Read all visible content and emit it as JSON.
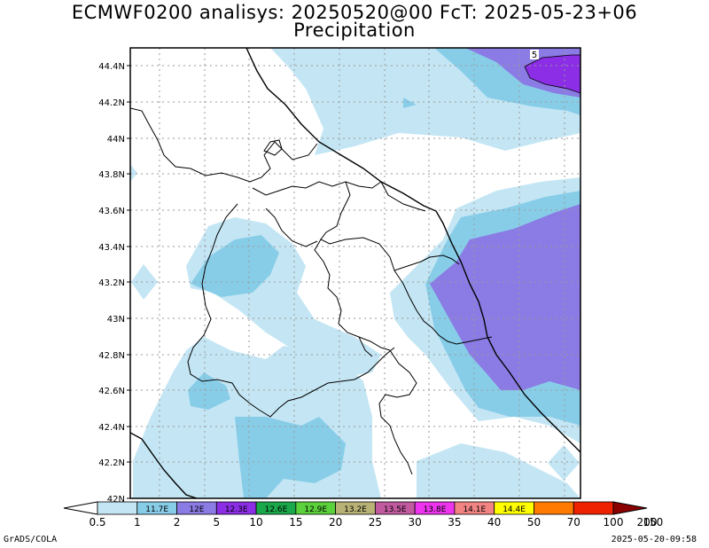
{
  "title_line1": "ECMWF0200 analisys: 20250520@00 FcT: 2025-05-23+06",
  "title_line2": "Precipitation",
  "lat_labels": [
    "44.4N",
    "44.2N",
    "44N",
    "43.8N",
    "43.6N",
    "43.4N",
    "43.2N",
    "43N",
    "42.8N",
    "42.6N",
    "42.4N",
    "42.2N",
    "42N"
  ],
  "contour_label": "5",
  "colorbar": {
    "colors": [
      "#ffffff",
      "#c4e6f4",
      "#88cde8",
      "#8b7be4",
      "#8b2ee6",
      "#1aa84a",
      "#5bd13c",
      "#b8b276",
      "#c25aa0",
      "#ee34ee",
      "#f28484",
      "#ffff00",
      "#ff7a00",
      "#ee2200",
      "#8a0000"
    ],
    "box_labels": [
      "11.7E",
      "12E",
      "12.3E",
      "12.6E",
      "12.9E",
      "13.2E",
      "13.5E",
      "13.8E",
      "14.1E",
      "14.4E"
    ],
    "tick_labels": [
      "0.5",
      "1",
      "2",
      "5",
      "10",
      "15",
      "20",
      "25",
      "30",
      "35",
      "40",
      "50",
      "70",
      "100",
      "150",
      "200"
    ]
  },
  "footer_left": "GrADS/COLA",
  "footer_right": "2025-05-20-09:58"
}
